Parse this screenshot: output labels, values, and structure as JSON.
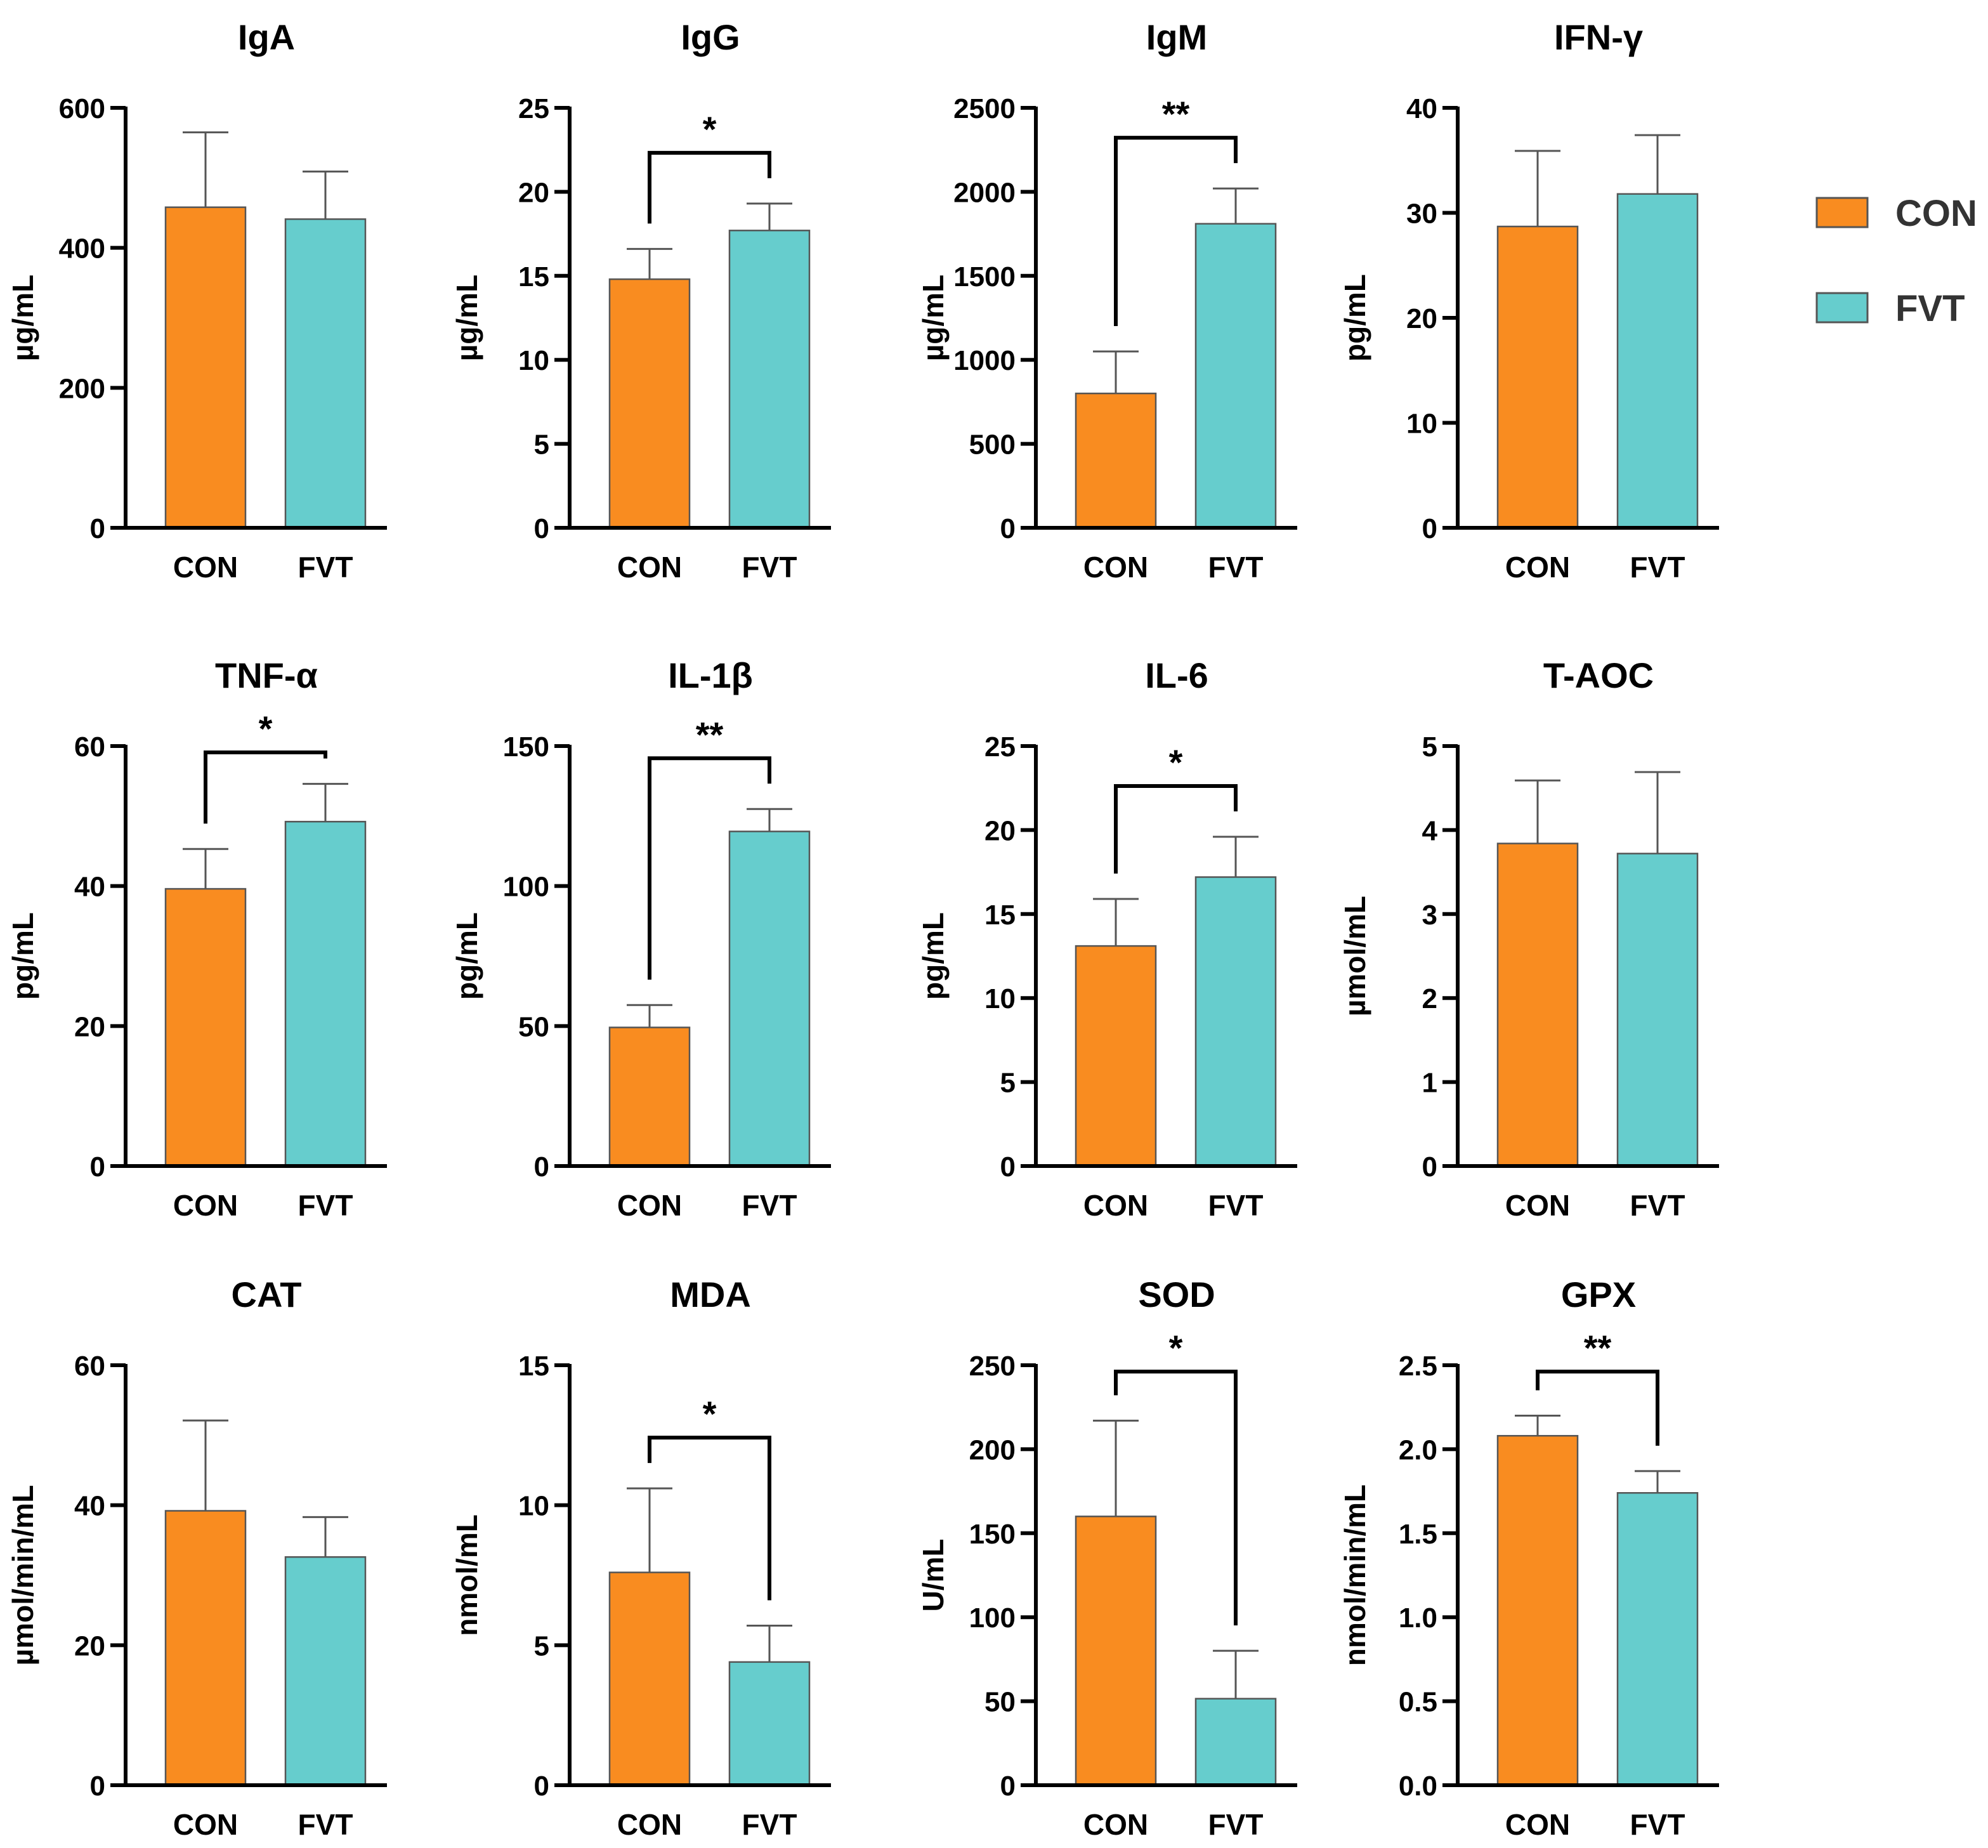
{
  "colors": {
    "CON": "#F98C20",
    "FVT": "#66CDCD",
    "bar_edge": "#555555",
    "error": "#555555",
    "axis": "#000000"
  },
  "legend": [
    {
      "name": "CON",
      "color": "#F98C20"
    },
    {
      "name": "FVT",
      "color": "#66CDCD"
    }
  ],
  "chart_data": [
    {
      "type": "bar",
      "title": "IgA",
      "ylabel": "µg/mL",
      "ylim": [
        0,
        600
      ],
      "ticks": [
        "0",
        "200",
        "400",
        "600"
      ],
      "categories": [
        "CON",
        "FVT"
      ],
      "values": [
        458,
        441
      ],
      "errors": [
        107,
        68
      ],
      "significance": null
    },
    {
      "type": "bar",
      "title": "IgG",
      "ylabel": "µg/mL",
      "ylim": [
        0,
        25
      ],
      "ticks": [
        "0",
        "5",
        "10",
        "15",
        "20",
        "25"
      ],
      "categories": [
        "CON",
        "FVT"
      ],
      "values": [
        14.8,
        17.7
      ],
      "errors": [
        1.8,
        1.6
      ],
      "significance": "*"
    },
    {
      "type": "bar",
      "title": "IgM",
      "ylabel": "µg/mL",
      "ylim": [
        0,
        2500
      ],
      "ticks": [
        "0",
        "500",
        "1000",
        "1500",
        "2000",
        "2500"
      ],
      "categories": [
        "CON",
        "FVT"
      ],
      "values": [
        800,
        1810
      ],
      "errors": [
        250,
        210
      ],
      "significance": "**"
    },
    {
      "type": "bar",
      "title": "IFN-γ",
      "ylabel": "pg/mL",
      "ylim": [
        0,
        40
      ],
      "ticks": [
        "0",
        "10",
        "20",
        "30",
        "40"
      ],
      "categories": [
        "CON",
        "FVT"
      ],
      "values": [
        28.7,
        31.8
      ],
      "errors": [
        7.2,
        5.6
      ],
      "significance": null
    },
    {
      "type": "bar",
      "title": "TNF-α",
      "ylabel": "pg/mL",
      "ylim": [
        0,
        60
      ],
      "ticks": [
        "0",
        "20",
        "40",
        "60"
      ],
      "categories": [
        "CON",
        "FVT"
      ],
      "values": [
        39.6,
        49.2
      ],
      "errors": [
        5.7,
        5.4
      ],
      "significance": "*"
    },
    {
      "type": "bar",
      "title": "IL-1β",
      "ylabel": "pg/mL",
      "ylim": [
        0,
        150
      ],
      "ticks": [
        "0",
        "50",
        "100",
        "150"
      ],
      "categories": [
        "CON",
        "FVT"
      ],
      "values": [
        49.5,
        119.5
      ],
      "errors": [
        8,
        8
      ],
      "significance": "**"
    },
    {
      "type": "bar",
      "title": "IL-6",
      "ylabel": "pg/mL",
      "ylim": [
        0,
        25
      ],
      "ticks": [
        "0",
        "5",
        "10",
        "15",
        "20",
        "25"
      ],
      "categories": [
        "CON",
        "FVT"
      ],
      "values": [
        13.1,
        17.2
      ],
      "errors": [
        2.8,
        2.4
      ],
      "significance": "*"
    },
    {
      "type": "bar",
      "title": "T-AOC",
      "ylabel": "µmol/mL",
      "ylim": [
        0,
        5
      ],
      "ticks": [
        "0",
        "1",
        "2",
        "3",
        "4",
        "5"
      ],
      "categories": [
        "CON",
        "FVT"
      ],
      "values": [
        3.84,
        3.72
      ],
      "errors": [
        0.75,
        0.97
      ],
      "significance": null
    },
    {
      "type": "bar",
      "title": "CAT",
      "ylabel": "µmol/min/mL",
      "ylim": [
        0,
        60
      ],
      "ticks": [
        "0",
        "20",
        "40",
        "60"
      ],
      "categories": [
        "CON",
        "FVT"
      ],
      "values": [
        39.2,
        32.6
      ],
      "errors": [
        12.9,
        5.7
      ],
      "significance": null
    },
    {
      "type": "bar",
      "title": "MDA",
      "ylabel": "nmol/mL",
      "ylim": [
        0,
        15
      ],
      "ticks": [
        "0",
        "5",
        "10",
        "15"
      ],
      "categories": [
        "CON",
        "FVT"
      ],
      "values": [
        7.6,
        4.4
      ],
      "errors": [
        3.0,
        1.3
      ],
      "significance": "*"
    },
    {
      "type": "bar",
      "title": "SOD",
      "ylabel": "U/mL",
      "ylim": [
        0,
        250
      ],
      "ticks": [
        "0",
        "50",
        "100",
        "150",
        "200",
        "250"
      ],
      "categories": [
        "CON",
        "FVT"
      ],
      "values": [
        160,
        51.5
      ],
      "errors": [
        57,
        28.5
      ],
      "significance": "*"
    },
    {
      "type": "bar",
      "title": "GPX",
      "ylabel": "nmol/min/mL",
      "ylim": [
        0,
        2.5
      ],
      "ticks": [
        "0.0",
        "0.5",
        "1.0",
        "1.5",
        "2.0",
        "2.5"
      ],
      "categories": [
        "CON",
        "FVT"
      ],
      "values": [
        2.08,
        1.74
      ],
      "errors": [
        0.12,
        0.13
      ],
      "significance": "**"
    }
  ]
}
